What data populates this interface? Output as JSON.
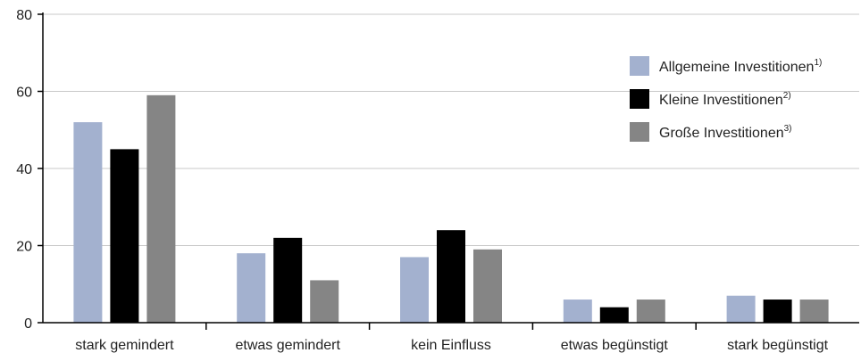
{
  "chart_data": {
    "type": "bar",
    "categories": [
      "stark gemindert",
      "etwas gemindert",
      "kein Einfluss",
      "etwas begünstigt",
      "stark begünstigt"
    ],
    "series": [
      {
        "name": "Allgemeine Investitionen",
        "sup": "1)",
        "color": "#a3b1cf",
        "values": [
          52,
          18,
          17,
          6,
          7
        ]
      },
      {
        "name": "Kleine Investitionen",
        "sup": "2)",
        "color": "#000000",
        "values": [
          45,
          22,
          24,
          4,
          6
        ]
      },
      {
        "name": "Große Investitionen",
        "sup": "3)",
        "color": "#858585",
        "values": [
          59,
          11,
          19,
          6,
          6
        ]
      }
    ],
    "ylim": [
      0,
      80
    ],
    "yticks": [
      "0",
      "20",
      "40",
      "60",
      "80"
    ],
    "grid": true,
    "legend_position": "top-right",
    "title": "",
    "xlabel": "",
    "ylabel": ""
  }
}
